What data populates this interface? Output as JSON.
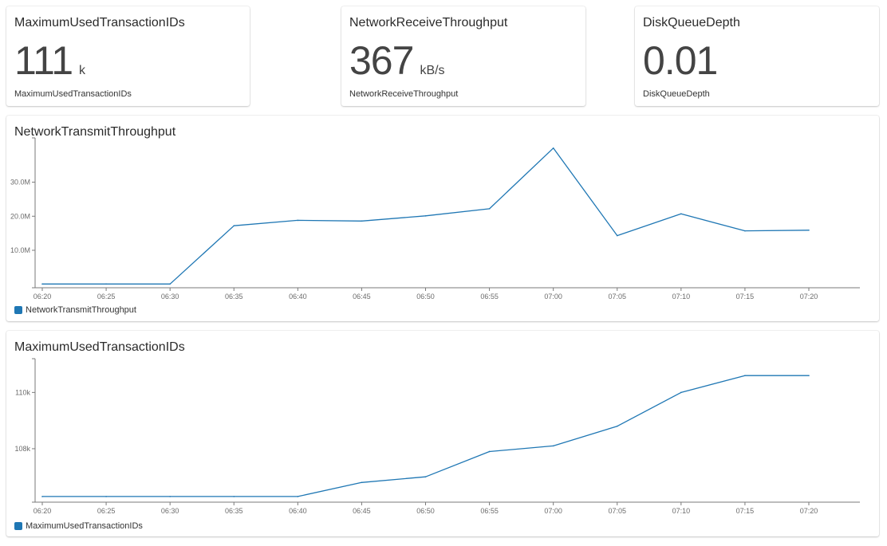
{
  "colors": {
    "series": "#1f77b4",
    "axis": "#7a7a7a"
  },
  "stats": [
    {
      "title": "MaximumUsedTransactionIDs",
      "value": "111",
      "unit": "k",
      "label": "MaximumUsedTransactionIDs"
    },
    {
      "title": "NetworkReceiveThroughput",
      "value": "367",
      "unit": "kB/s",
      "label": "NetworkReceiveThroughput"
    },
    {
      "title": "DiskQueueDepth",
      "value": "0.01",
      "unit": "",
      "label": "DiskQueueDepth"
    }
  ],
  "chart_data": [
    {
      "type": "line",
      "title": "NetworkTransmitThroughput",
      "xlabel": "",
      "ylabel": "",
      "categories": [
        "06:20",
        "06:25",
        "06:30",
        "06:35",
        "06:40",
        "06:45",
        "06:50",
        "06:55",
        "07:00",
        "07:05",
        "07:10",
        "07:15",
        "07:20"
      ],
      "x_tick_labels": [
        "06:20",
        "06:25",
        "06:30",
        "06:35",
        "06:40",
        "06:45",
        "06:50",
        "06:55",
        "07:00",
        "07:05",
        "07:10",
        "07:15",
        "07:20"
      ],
      "series": [
        {
          "name": "NetworkTransmitThroughput",
          "values": [
            0.1,
            0.1,
            0.1,
            17.2,
            18.8,
            18.6,
            20.1,
            22.2,
            40.0,
            14.3,
            20.7,
            15.7,
            15.9
          ]
        }
      ],
      "ylim": [
        -1,
        43
      ],
      "y_ticks": [
        10,
        20,
        30
      ],
      "y_tick_labels": [
        "10.0M",
        "20.0M",
        "30.0M"
      ],
      "legend": "bottom-left"
    },
    {
      "type": "line",
      "title": "MaximumUsedTransactionIDs",
      "xlabel": "",
      "ylabel": "",
      "categories": [
        "06:20",
        "06:25",
        "06:30",
        "06:35",
        "06:40",
        "06:45",
        "06:50",
        "06:55",
        "07:00",
        "07:05",
        "07:10",
        "07:15",
        "07:20"
      ],
      "x_tick_labels": [
        "06:20",
        "06:25",
        "06:30",
        "06:35",
        "06:40",
        "06:45",
        "06:50",
        "06:55",
        "07:00",
        "07:05",
        "07:10",
        "07:15",
        "07:20"
      ],
      "series": [
        {
          "name": "MaximumUsedTransactionIDs",
          "values": [
            106.3,
            106.3,
            106.3,
            106.3,
            106.3,
            106.8,
            107.0,
            107.9,
            108.1,
            108.8,
            110.0,
            110.6,
            110.6
          ]
        }
      ],
      "ylim": [
        106.1,
        111.2
      ],
      "y_ticks": [
        108,
        110
      ],
      "y_tick_labels": [
        "108k",
        "110k"
      ],
      "legend": "bottom-left"
    }
  ]
}
